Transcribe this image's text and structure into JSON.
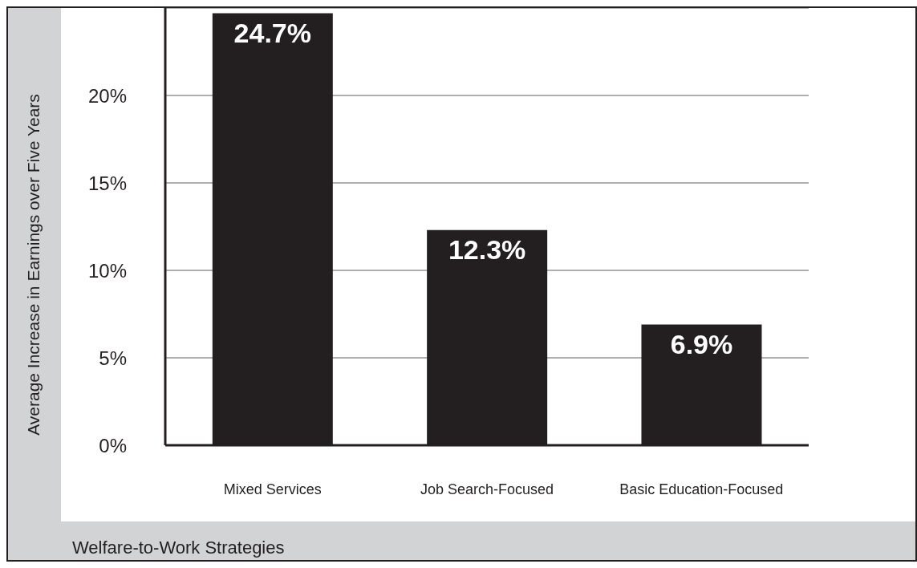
{
  "chart_data": {
    "type": "bar",
    "xlabel": "Welfare-to-Work Strategies",
    "ylabel": "Average Increase in Earnings over Five Years",
    "categories": [
      "Mixed Services",
      "Job Search-Focused",
      "Basic Education-Focused"
    ],
    "values": [
      24.7,
      12.3,
      6.9
    ],
    "color": "#231f20",
    "value_labels": [
      "24.7%",
      "12.3%",
      "6.9%"
    ],
    "ylim": [
      0,
      25
    ],
    "yticks": [
      {
        "value": 0,
        "label": "0%"
      },
      {
        "value": 5,
        "label": "5%"
      },
      {
        "value": 10,
        "label": "10%"
      },
      {
        "value": 15,
        "label": "15%"
      },
      {
        "value": 20,
        "label": "20%"
      }
    ],
    "grid": "y"
  }
}
